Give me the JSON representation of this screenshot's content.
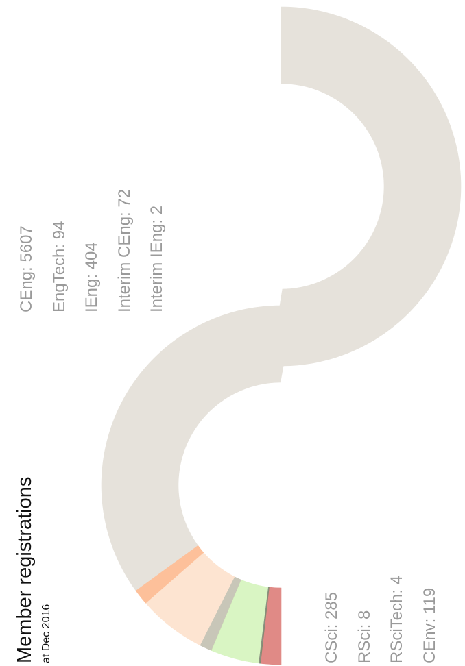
{
  "chart_data": {
    "type": "pie",
    "title": "Member registrations",
    "subtitle": "at Dec 2016",
    "series": [
      {
        "name": "CEng",
        "label": "CEng: 5607",
        "value": 5607,
        "color": "#e6e2db"
      },
      {
        "name": "EngTech",
        "label": "EngTech: 94",
        "value": 94,
        "color": "#fdc09a"
      },
      {
        "name": "IEng",
        "label": "IEng: 404",
        "value": 404,
        "color": "#fde4d1"
      },
      {
        "name": "Interim CEng",
        "label": "Interim CEng: 72",
        "value": 72,
        "color": "#c8c6b8"
      },
      {
        "name": "Interim IEng",
        "label": "Interim IEng: 2",
        "value": 2,
        "color": "#d1e8b5"
      },
      {
        "name": "CSci",
        "label": "CSci: 285",
        "value": 285,
        "color": "#d9f5c3"
      },
      {
        "name": "RSci",
        "label": "RSci: 8",
        "value": 8,
        "color": "#8a9180"
      },
      {
        "name": "RSciTech",
        "label": "RSciTech: 4",
        "value": 4,
        "color": "#7f8a6d"
      },
      {
        "name": "CEnv",
        "label": "CEnv: 119",
        "value": 119,
        "color": "#e08a86"
      }
    ],
    "label_groups": {
      "engineering": [
        "CEng: 5607",
        "EngTech: 94",
        "IEng: 404",
        "Interim CEng: 72",
        "Interim IEng: 2"
      ],
      "science": [
        "CSci: 285",
        "RSci: 8",
        "RSciTech: 4",
        "CEnv: 119"
      ]
    }
  }
}
